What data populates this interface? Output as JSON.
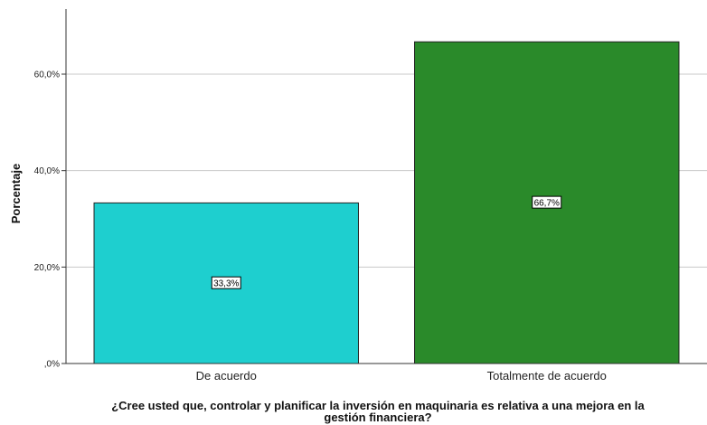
{
  "chart_data": {
    "type": "bar",
    "categories": [
      "De acuerdo",
      "Totalmente de acuerdo"
    ],
    "values": [
      33.3,
      66.7
    ],
    "data_labels": [
      "33,3%",
      "66,7%"
    ],
    "colors": [
      "#1ECFCF",
      "#2A8A2A"
    ],
    "ylabel": "Porcentaje",
    "xlabel_lines": [
      "¿Cree usted que, controlar y planificar la inversión en maquinaria es relativa a una mejora en la",
      "gestión financiera?"
    ],
    "yticks": [
      0,
      20,
      40,
      60
    ],
    "ytick_labels": [
      ",0%",
      "20,0%",
      "40,0%",
      "60,0%"
    ],
    "ylim": [
      0,
      73.5
    ],
    "grid": true
  }
}
